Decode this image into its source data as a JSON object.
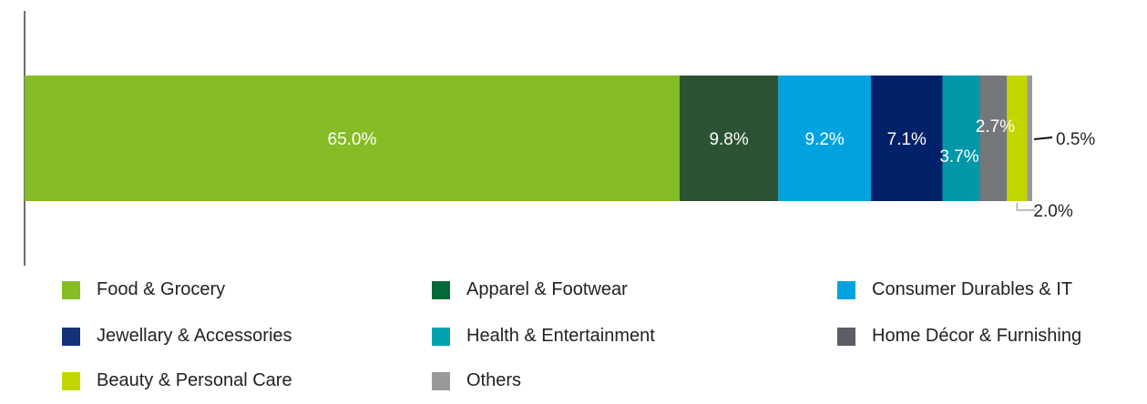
{
  "chart_data": {
    "type": "bar",
    "orientation": "horizontal-stacked",
    "unit": "%",
    "xlim": [
      0,
      100
    ],
    "grid": false,
    "legend_position": "bottom",
    "series": [
      {
        "name": "Food & Grocery",
        "value": 65.0,
        "label": "65.0%",
        "color": "#86bc25"
      },
      {
        "name": "Apparel & Footwear",
        "value": 9.8,
        "label": "9.8%",
        "color": "#2c5234"
      },
      {
        "name": "Consumer Durables & IT",
        "value": 9.2,
        "label": "9.2%",
        "color": "#00a3e0"
      },
      {
        "name": "Jewellary & Accessories",
        "value": 7.1,
        "label": "7.1%",
        "color": "#012169"
      },
      {
        "name": "Health & Entertainment",
        "value": 3.7,
        "label": "3.7%",
        "color": "#0097a9"
      },
      {
        "name": "Home Décor & Furnishing",
        "value": 2.7,
        "label": "2.7%",
        "color": "#75787b"
      },
      {
        "name": "Beauty & Personal Care",
        "value": 2.0,
        "label": "2.0%",
        "color": "#c4d600"
      },
      {
        "name": "Others",
        "value": 0.5,
        "label": "0.5%",
        "color": "#97999b"
      }
    ]
  },
  "legend": {
    "swatch_colors": [
      "#86bc25",
      "#046a38",
      "#00a3e0",
      "#12337a",
      "#00a3ad",
      "#5b5e63",
      "#c4d600",
      "#97999b"
    ]
  }
}
